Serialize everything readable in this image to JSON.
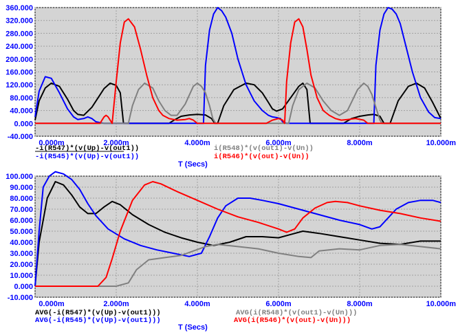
{
  "chart_data": [
    {
      "type": "line",
      "xlabel": "T (Secs)",
      "xlim": [
        0,
        10
      ],
      "ylim": [
        -40,
        360
      ],
      "x_ticks": [
        "0.000m",
        "2.000m",
        "4.000m",
        "6.000m",
        "8.000m",
        "10.000m"
      ],
      "y_ticks": [
        "-40.000",
        "0.000",
        "40.000",
        "80.000",
        "120.000",
        "160.000",
        "200.000",
        "240.000",
        "280.000",
        "320.000",
        "360.000"
      ],
      "grid": true,
      "series": [
        {
          "name": "-i(R547)*(v(Up)-v(out1))",
          "color": "#000000",
          "x": [
            0,
            0.1,
            0.25,
            0.4,
            0.6,
            0.8,
            0.95,
            1.05,
            1.2,
            1.4,
            1.7,
            1.85,
            2.0,
            2.1,
            2.18,
            3.3,
            3.45,
            3.6,
            3.8,
            4.0,
            4.2,
            4.35,
            4.43,
            4.5,
            4.65,
            4.9,
            5.2,
            5.4,
            5.6,
            5.75,
            5.85,
            5.95,
            6.1,
            6.3,
            6.5,
            6.6,
            6.7,
            6.78,
            7.6,
            7.8,
            8.0,
            8.2,
            8.35,
            8.5,
            8.6,
            8.75,
            8.95,
            9.2,
            9.4,
            9.6,
            9.8,
            10.0
          ],
          "y": [
            10,
            70,
            110,
            125,
            115,
            75,
            40,
            28,
            25,
            50,
            108,
            125,
            118,
            95,
            0,
            0,
            12,
            22,
            26,
            28,
            26,
            15,
            0,
            0,
            55,
            105,
            125,
            120,
            95,
            65,
            45,
            38,
            45,
            80,
            115,
            125,
            105,
            0,
            0,
            15,
            22,
            26,
            28,
            22,
            0,
            0,
            70,
            115,
            125,
            110,
            65,
            15
          ]
        },
        {
          "name": "-i(R545)*(v(Up)-v(out1))",
          "color": "#0000ff",
          "x": [
            0,
            0.1,
            0.25,
            0.4,
            0.6,
            0.8,
            0.95,
            1.05,
            1.2,
            1.3,
            1.4,
            1.5,
            1.7,
            4.15,
            4.2,
            4.3,
            4.4,
            4.5,
            4.6,
            4.7,
            4.85,
            5.0,
            5.2,
            5.4,
            5.6,
            5.75,
            5.85,
            5.95,
            6.05,
            6.1,
            6.2,
            8.35,
            8.4,
            8.5,
            8.6,
            8.7,
            8.8,
            8.9,
            9.0,
            9.1,
            9.3,
            9.5,
            9.7,
            9.85,
            10.0
          ],
          "y": [
            20,
            100,
            145,
            140,
            95,
            45,
            20,
            12,
            15,
            20,
            15,
            5,
            0,
            0,
            180,
            290,
            340,
            360,
            350,
            330,
            280,
            200,
            120,
            70,
            40,
            25,
            20,
            18,
            15,
            5,
            0,
            0,
            180,
            290,
            340,
            360,
            355,
            340,
            310,
            260,
            160,
            80,
            35,
            18,
            15
          ]
        },
        {
          "name": "i(R548)*(v(out1)-v(Un))",
          "color": "#808080",
          "x": [
            0,
            2.3,
            2.4,
            2.55,
            2.7,
            2.9,
            3.05,
            3.2,
            3.35,
            3.5,
            3.7,
            3.9,
            4.0,
            4.1,
            4.2,
            4.3,
            4.38,
            4.45,
            6.25,
            6.35,
            6.5,
            6.7,
            6.9,
            7.1,
            7.3,
            7.5,
            7.7,
            7.95,
            8.1,
            8.2,
            8.3,
            8.45,
            8.5,
            8.55,
            10.0
          ],
          "y": [
            0,
            0,
            55,
            105,
            125,
            110,
            70,
            40,
            25,
            25,
            60,
            115,
            125,
            115,
            95,
            55,
            15,
            0,
            0,
            55,
            105,
            125,
            110,
            70,
            40,
            25,
            40,
            105,
            125,
            115,
            90,
            30,
            10,
            0,
            0
          ]
        },
        {
          "name": "i(R546)*(v(out)-v(Un))",
          "color": "#ff0000",
          "x": [
            0,
            1.6,
            1.65,
            1.7,
            1.75,
            1.8,
            1.9,
            2.0,
            2.1,
            2.2,
            2.3,
            2.45,
            2.6,
            2.75,
            2.9,
            3.05,
            3.15,
            3.3,
            3.5,
            3.7,
            3.8,
            3.9,
            4.0,
            5.7,
            5.85,
            6.0,
            6.1,
            6.15,
            6.2,
            6.3,
            6.4,
            6.5,
            6.6,
            6.7,
            6.8,
            6.95,
            7.1,
            7.25,
            7.4,
            7.55,
            7.7,
            7.9,
            8.1,
            8.2,
            8.3,
            10.0
          ],
          "y": [
            0,
            0,
            10,
            20,
            25,
            20,
            0,
            130,
            250,
            315,
            325,
            300,
            230,
            150,
            80,
            40,
            25,
            15,
            10,
            12,
            15,
            10,
            0,
            0,
            10,
            15,
            10,
            0,
            130,
            250,
            315,
            325,
            300,
            230,
            150,
            80,
            40,
            25,
            15,
            10,
            12,
            15,
            10,
            0,
            0,
            0
          ]
        }
      ]
    },
    {
      "type": "line",
      "xlabel": "T (Secs)",
      "xlim": [
        0,
        10
      ],
      "ylim": [
        -10,
        100
      ],
      "x_ticks": [
        "0.000m",
        "2.000m",
        "4.000m",
        "6.000m",
        "8.000m",
        "10.000m"
      ],
      "y_ticks": [
        "-10.000",
        "0.000",
        "10.000",
        "20.000",
        "30.000",
        "40.000",
        "50.000",
        "60.000",
        "70.000",
        "80.000",
        "90.000",
        "100.000"
      ],
      "grid": true,
      "series": [
        {
          "name": "AVG(-i(R547)*(v(Up)-v(out1)))",
          "color": "#000000",
          "x": [
            0,
            0.1,
            0.3,
            0.5,
            0.7,
            0.9,
            1.1,
            1.3,
            1.5,
            1.7,
            1.9,
            2.1,
            2.4,
            2.8,
            3.2,
            3.6,
            4.0,
            4.4,
            4.8,
            5.2,
            5.6,
            6.0,
            6.3,
            6.6,
            7.0,
            7.5,
            8.0,
            8.5,
            9.0,
            9.5,
            10.0
          ],
          "y": [
            0,
            40,
            80,
            95,
            92,
            83,
            72,
            66,
            66,
            72,
            77,
            74,
            65,
            56,
            49,
            44,
            40,
            37,
            40,
            45,
            45,
            44,
            47,
            50,
            48,
            45,
            42,
            39,
            38,
            41,
            41
          ]
        },
        {
          "name": "AVG(-i(R545)*(v(Up)-v(out1)))",
          "color": "#0000ff",
          "x": [
            0,
            0.1,
            0.2,
            0.35,
            0.5,
            0.7,
            0.9,
            1.1,
            1.3,
            1.5,
            1.8,
            2.2,
            2.6,
            3.0,
            3.4,
            3.8,
            4.1,
            4.3,
            4.5,
            4.7,
            5.0,
            5.3,
            5.6,
            6.0,
            6.5,
            7.0,
            7.5,
            8.0,
            8.3,
            8.5,
            8.7,
            8.9,
            9.2,
            9.5,
            9.8,
            10.0
          ],
          "y": [
            0,
            50,
            90,
            100,
            104,
            102,
            97,
            88,
            75,
            64,
            52,
            43,
            37,
            33,
            30,
            27,
            30,
            45,
            62,
            73,
            80,
            80,
            78,
            75,
            70,
            65,
            60,
            56,
            52,
            54,
            62,
            70,
            76,
            78,
            78,
            76
          ]
        },
        {
          "name": "AVG(i(R548)*(v(out1)-v(Un)))",
          "color": "#808080",
          "x": [
            0,
            2.0,
            2.3,
            2.5,
            2.8,
            3.2,
            3.6,
            3.9,
            4.2,
            4.5,
            5.0,
            5.5,
            6.0,
            6.5,
            6.8,
            7.0,
            7.5,
            8.0,
            8.5,
            9.0,
            9.5,
            10.0
          ],
          "y": [
            0,
            0,
            3,
            15,
            24,
            26,
            28,
            32,
            36,
            38,
            36,
            34,
            30,
            27,
            26,
            32,
            34,
            33,
            37,
            38,
            36,
            34
          ]
        },
        {
          "name": "AVG(i(R546)*(v(out)-v(Un)))",
          "color": "#ff0000",
          "x": [
            0,
            1.55,
            1.75,
            1.9,
            2.1,
            2.4,
            2.7,
            2.9,
            3.1,
            3.5,
            4.0,
            4.5,
            5.0,
            5.5,
            6.0,
            6.2,
            6.4,
            6.6,
            6.9,
            7.2,
            7.4,
            7.7,
            8.0,
            8.5,
            9.0,
            9.5,
            10.0
          ],
          "y": [
            0,
            0,
            8,
            25,
            50,
            78,
            92,
            95,
            93,
            86,
            78,
            70,
            63,
            58,
            52,
            49,
            52,
            62,
            71,
            76,
            77,
            76,
            73,
            69,
            66,
            62,
            59
          ]
        }
      ]
    }
  ]
}
